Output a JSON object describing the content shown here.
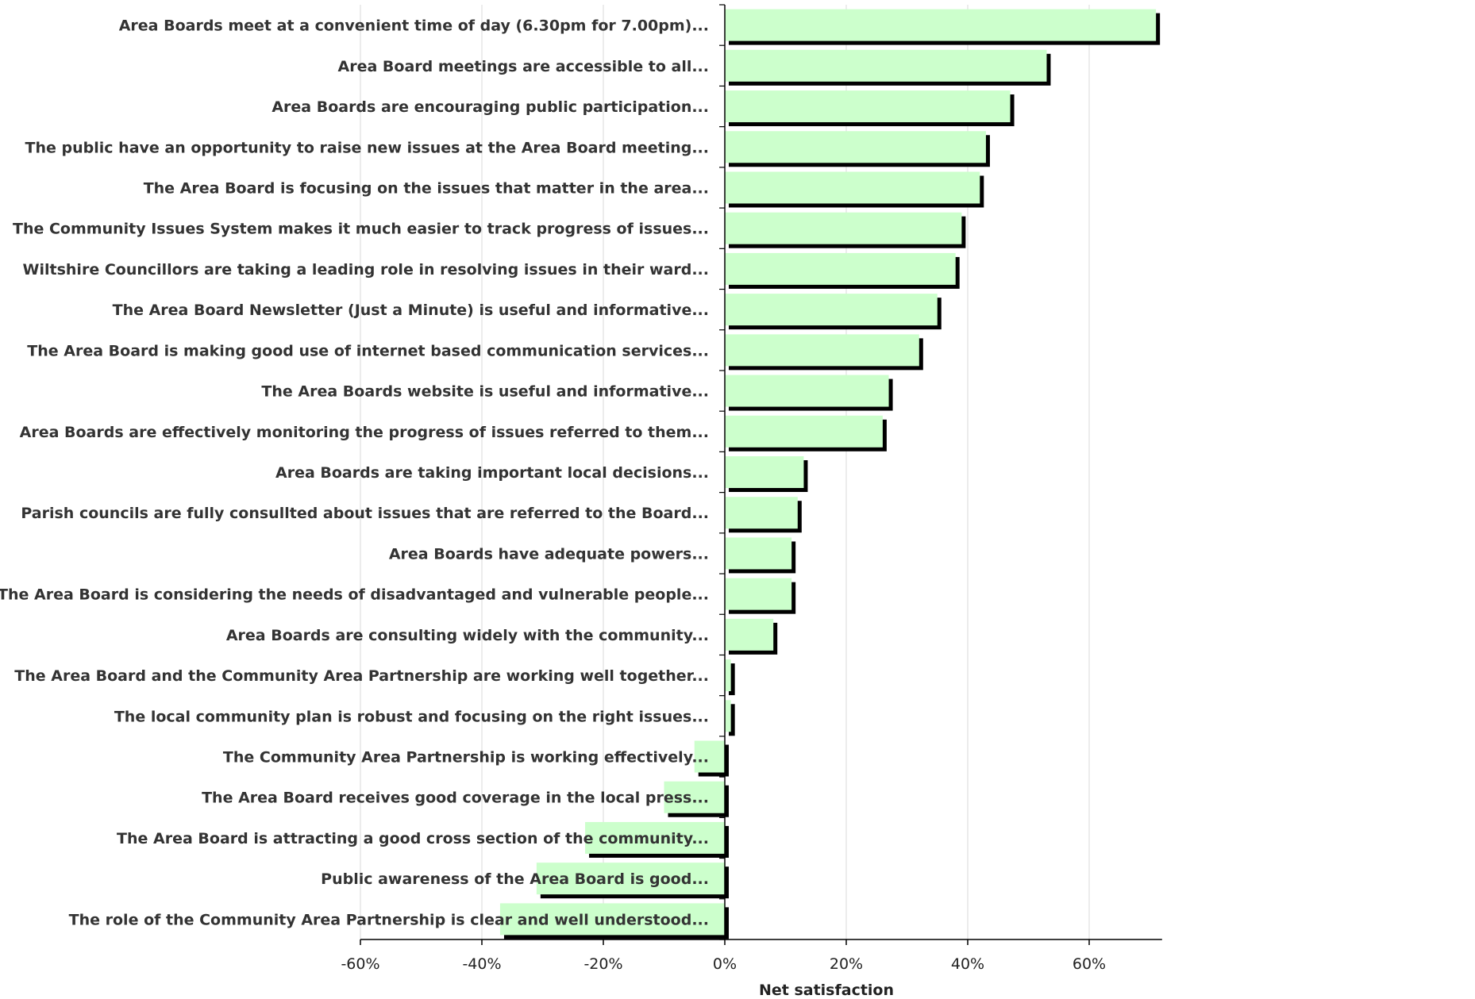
{
  "chart_data": {
    "type": "bar",
    "orientation": "horizontal",
    "xlabel": "Net satisfaction",
    "ylabel": "",
    "xlim": [
      -0.6,
      0.72
    ],
    "x_ticks": [
      -0.6,
      -0.4,
      -0.2,
      0,
      0.2,
      0.4,
      0.6
    ],
    "x_tick_labels": [
      "-60%",
      "-40%",
      "-20%",
      "0%",
      "20%",
      "40%",
      "60%"
    ],
    "grid": "vertical",
    "legend": "none",
    "colors": {
      "bar_fill": "#ccffcc",
      "bar_shadow": "#000000",
      "gridline": "#d9d9d9",
      "axis": "#000000",
      "label_text": "#333333"
    },
    "categories": [
      "Area Boards meet at a convenient time of day (6.30pm for 7.00pm)...",
      "Area Board meetings are accessible to all...",
      "Area Boards are encouraging public participation...",
      "The public have an opportunity to raise new issues at the Area Board meeting...",
      "The Area Board is focusing on the issues that matter in the area...",
      "The Community Issues System makes it much easier to track progress of issues...",
      "Wiltshire Councillors are taking a leading role in resolving issues in their ward...",
      "The Area Board Newsletter (Just a Minute) is useful and informative...",
      "The Area Board is making good use of internet based communication services...",
      "The Area Boards website is useful and informative...",
      "Area Boards are effectively monitoring the progress of issues referred to them...",
      "Area Boards are taking important local decisions...",
      "Parish councils are fully consullted about issues that are referred to the Board...",
      "Area Boards have adequate powers...",
      "The Area Board is considering the needs of disadvantaged and vulnerable people...",
      "Area Boards are consulting widely with the community...",
      "The Area Board and the Community Area Partnership are working well together...",
      "The local community plan is robust and focusing on the right issues...",
      "The Community Area Partnership is working effectively...",
      "The Area Board receives good coverage in the local press...",
      "The Area Board is attracting a good cross section of the community...",
      "Public awareness of the Area Board is good...",
      "The role of the Community Area Partnership is clear and well understood..."
    ],
    "values": [
      0.71,
      0.53,
      0.47,
      0.43,
      0.42,
      0.39,
      0.38,
      0.35,
      0.32,
      0.27,
      0.26,
      0.13,
      0.12,
      0.11,
      0.11,
      0.08,
      0.01,
      0.01,
      -0.05,
      -0.1,
      -0.23,
      -0.31,
      -0.37
    ]
  }
}
